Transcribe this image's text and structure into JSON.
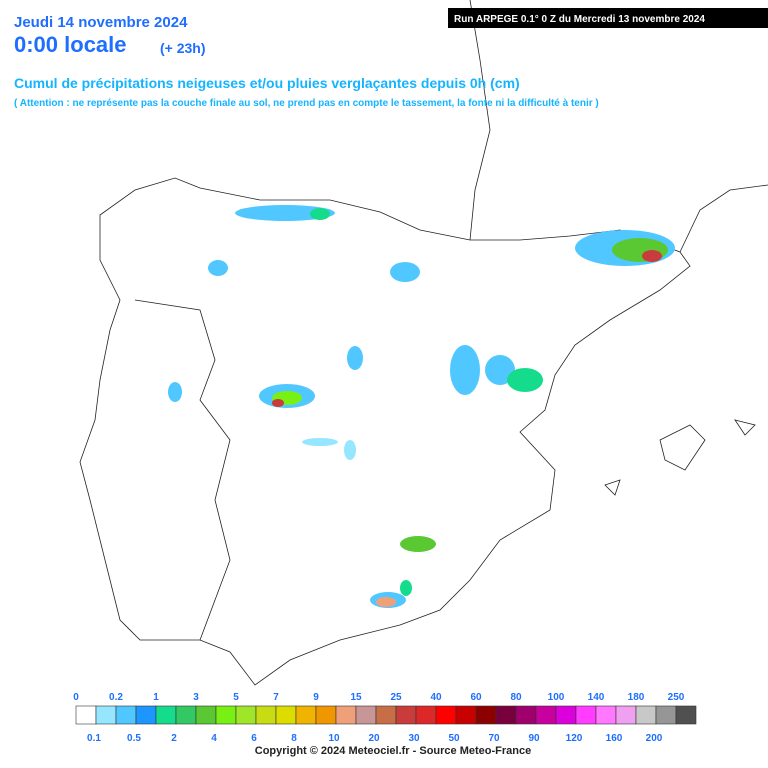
{
  "header": {
    "date": "Jeudi 14 novembre 2024",
    "time": "0:00 locale",
    "lead": "(+ 23h)",
    "run": "Run ARPEGE 0.1° 0 Z du Mercredi 13 novembre 2024",
    "title": "Cumul de précipitations neigeuses et/ou pluies verglaçantes depuis 0h (cm)",
    "warning": "( Attention : ne représente pas la couche finale au sol, ne prend pas en compte le tassement, la fonte ni la difficulté à tenir )"
  },
  "legend": {
    "top_labels": [
      "0",
      "0.2",
      "1",
      "3",
      "5",
      "7",
      "9",
      "15",
      "25",
      "40",
      "60",
      "80",
      "100",
      "140",
      "180",
      "250"
    ],
    "bottom_labels": [
      "0.1",
      "0.5",
      "2",
      "4",
      "6",
      "8",
      "10",
      "20",
      "30",
      "50",
      "70",
      "90",
      "120",
      "160",
      "200"
    ],
    "colors": [
      "#ffffff",
      "#96e6ff",
      "#50c8ff",
      "#1e96ff",
      "#14dc8c",
      "#32c864",
      "#5ac832",
      "#78f014",
      "#a0e628",
      "#c8dc14",
      "#dcdc00",
      "#f0b400",
      "#f09600",
      "#f0a078",
      "#c89696",
      "#c86e46",
      "#c83c3c",
      "#dc2828",
      "#ff0000",
      "#c80000",
      "#8c0000",
      "#78003c",
      "#a0006e",
      "#c800a0",
      "#dc00dc",
      "#ff3cff",
      "#ff78ff",
      "#f0a0f0",
      "#c8c8c8",
      "#969696",
      "#505050"
    ]
  },
  "footer": {
    "copyright": "Copyright © 2024 Meteociel.fr - Source Meteo-France"
  }
}
